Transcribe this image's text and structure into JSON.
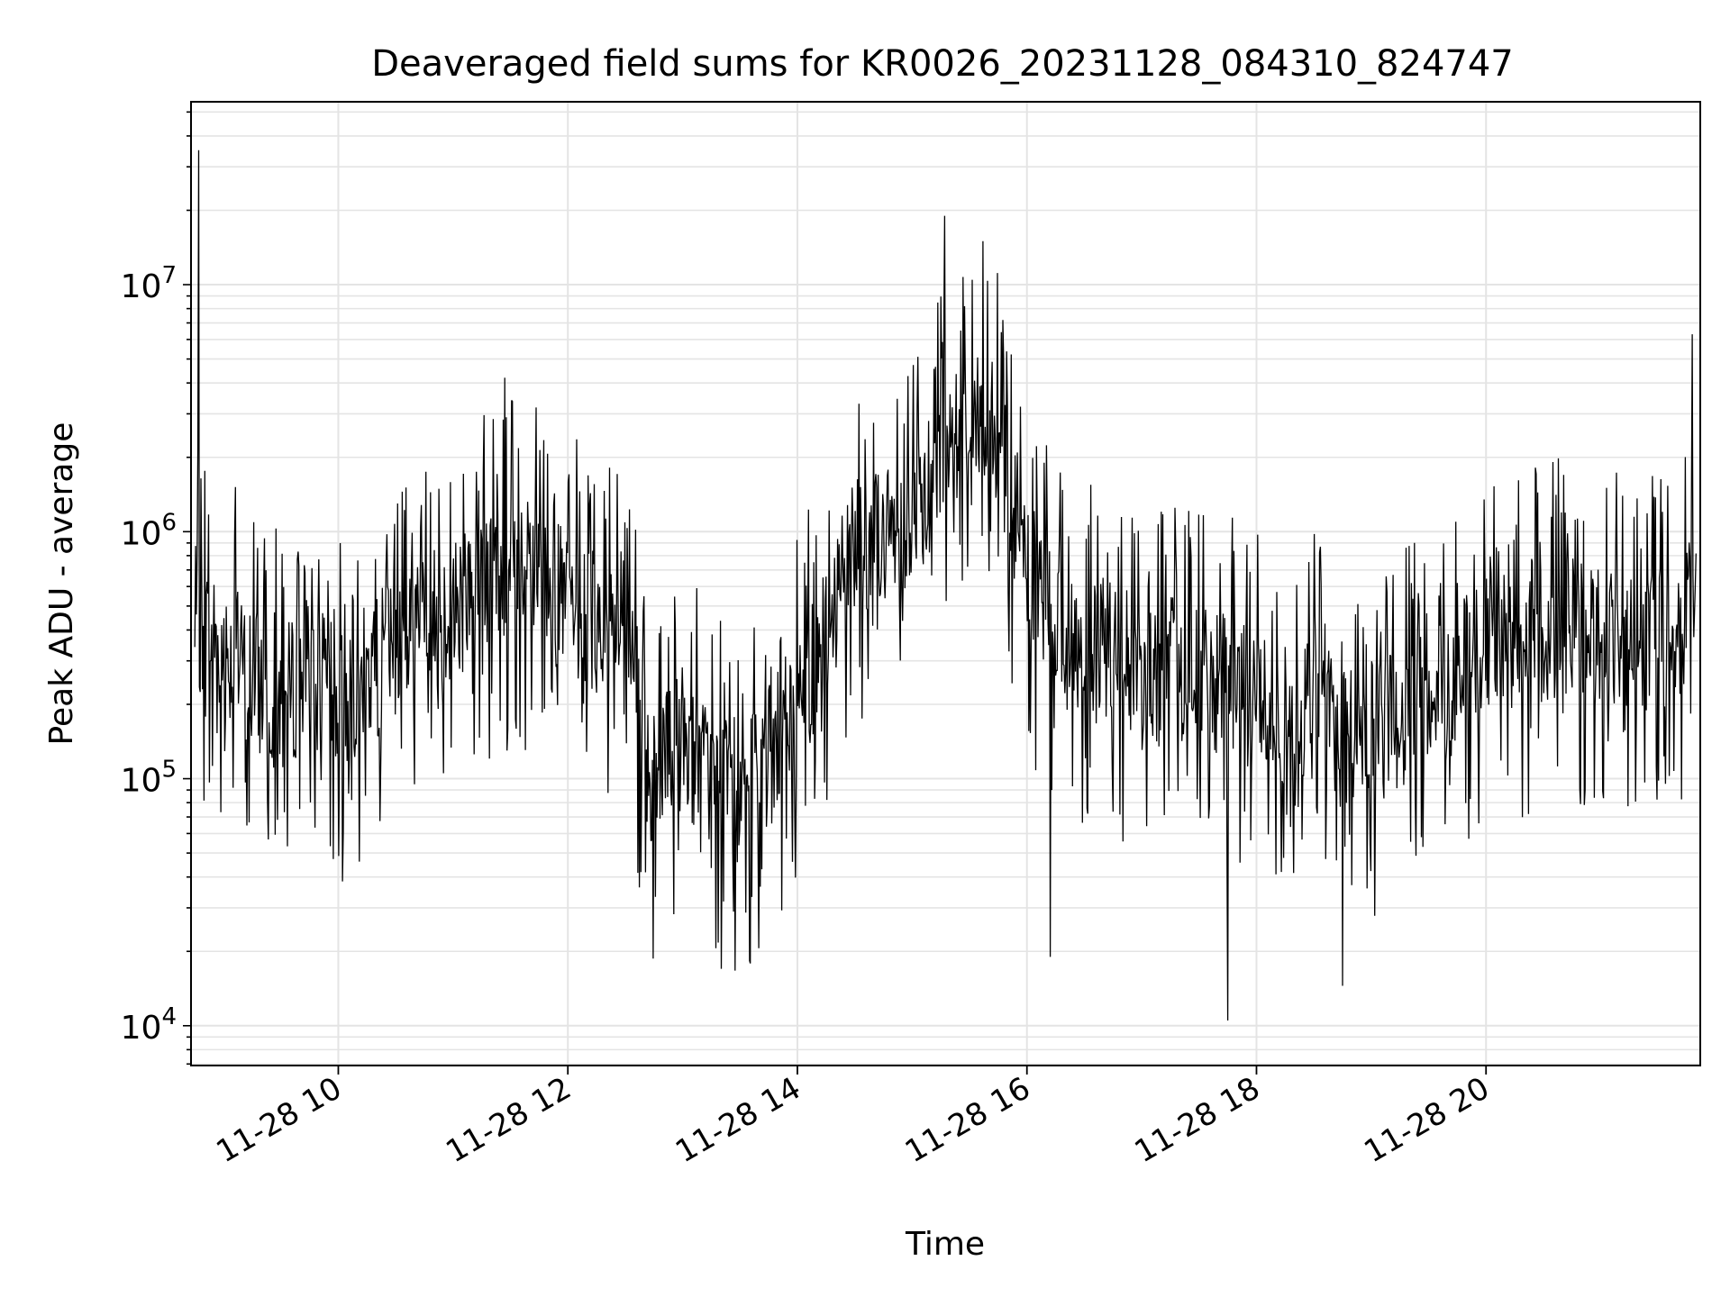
{
  "chart_data": {
    "type": "line",
    "title": "Deaveraged field sums for KR0026_20231128_084310_824747",
    "xlabel": "Time",
    "ylabel": "Peak ADU - average",
    "yscale": "log",
    "xlim": [
      "2023-11-28 08:43",
      "2023-11-28 21:52"
    ],
    "ylim": [
      6900,
      55000000
    ],
    "x_ticks": [
      "11-28 10",
      "11-28 12",
      "11-28 14",
      "11-28 16",
      "11-28 18",
      "11-28 20"
    ],
    "x_tick_values": [
      "2023-11-28 10:00",
      "2023-11-28 12:00",
      "2023-11-28 14:00",
      "2023-11-28 16:00",
      "2023-11-28 18:00",
      "2023-11-28 20:00"
    ],
    "y_ticks": [
      {
        "base": "10",
        "exp": "4",
        "value": 10000
      },
      {
        "base": "10",
        "exp": "5",
        "value": 100000
      },
      {
        "base": "10",
        "exp": "6",
        "value": 1000000
      },
      {
        "base": "10",
        "exp": "7",
        "value": 10000000
      }
    ],
    "grid": true,
    "line_color": "#000000",
    "series": [
      {
        "x": [
          "2023-11-28 08:45",
          "2023-11-28 09:00",
          "2023-11-28 09:15",
          "2023-11-28 09:30",
          "2023-11-28 09:45",
          "2023-11-28 10:00",
          "2023-11-28 10:15",
          "2023-11-28 10:30",
          "2023-11-28 10:45",
          "2023-11-28 11:00",
          "2023-11-28 11:15",
          "2023-11-28 11:30",
          "2023-11-28 11:45",
          "2023-11-28 12:00",
          "2023-11-28 12:15",
          "2023-11-28 12:30",
          "2023-11-28 12:45",
          "2023-11-28 13:00",
          "2023-11-28 13:15",
          "2023-11-28 13:30",
          "2023-11-28 13:45",
          "2023-11-28 14:00",
          "2023-11-28 14:15",
          "2023-11-28 14:30",
          "2023-11-28 14:45",
          "2023-11-28 15:00",
          "2023-11-28 15:15",
          "2023-11-28 15:30",
          "2023-11-28 15:45",
          "2023-11-28 16:00",
          "2023-11-28 16:15",
          "2023-11-28 16:30",
          "2023-11-28 16:45",
          "2023-11-28 17:00",
          "2023-11-28 17:15",
          "2023-11-28 17:30",
          "2023-11-28 17:45",
          "2023-11-28 18:00",
          "2023-11-28 18:15",
          "2023-11-28 18:30",
          "2023-11-28 18:45",
          "2023-11-28 19:00",
          "2023-11-28 19:15",
          "2023-11-28 19:30",
          "2023-11-28 19:45",
          "2023-11-28 20:00",
          "2023-11-28 20:15",
          "2023-11-28 20:30",
          "2023-11-28 20:45",
          "2023-11-28 21:00",
          "2023-11-28 21:15",
          "2023-11-28 21:30",
          "2023-11-28 21:45",
          "2023-11-28 21:50"
        ],
        "y": [
          450000,
          350000,
          250000,
          200000,
          280000,
          200000,
          260000,
          350000,
          420000,
          500000,
          620000,
          700000,
          650000,
          500000,
          420000,
          450000,
          90000,
          150000,
          100000,
          90000,
          120000,
          200000,
          400000,
          1000000,
          900000,
          1100000,
          2000000,
          3000000,
          2500000,
          700000,
          400000,
          300000,
          350000,
          250000,
          280000,
          260000,
          230000,
          220000,
          180000,
          200000,
          150000,
          150000,
          180000,
          200000,
          260000,
          350000,
          380000,
          400000,
          420000,
          380000,
          360000,
          350000,
          450000,
          550000
        ],
        "peaks": [
          {
            "x": "2023-11-28 08:47",
            "y": 35000000
          },
          {
            "x": "2023-11-28 11:27",
            "y": 4200000
          },
          {
            "x": "2023-11-28 13:20",
            "y": 17000
          },
          {
            "x": "2023-11-28 15:17",
            "y": 19000000
          },
          {
            "x": "2023-11-28 15:37",
            "y": 15000000
          },
          {
            "x": "2023-11-28 16:12",
            "y": 19000
          },
          {
            "x": "2023-11-28 17:45",
            "y": 10500
          },
          {
            "x": "2023-11-28 18:45",
            "y": 14500
          },
          {
            "x": "2023-11-28 21:48",
            "y": 6300000
          }
        ]
      }
    ]
  }
}
